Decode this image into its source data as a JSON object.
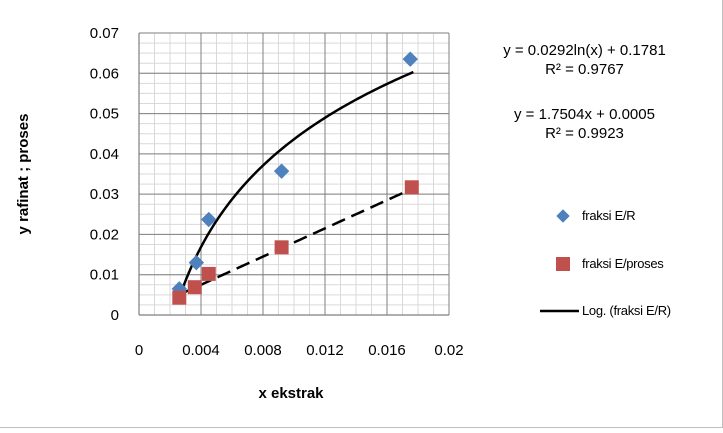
{
  "chart_data": {
    "type": "scatter",
    "xlabel": "x ekstrak",
    "ylabel": "y rafinat ; proses",
    "xlim": [
      0,
      0.02
    ],
    "ylim": [
      0,
      0.07
    ],
    "x_ticks": [
      "0",
      "0.004",
      "0.008",
      "0.012",
      "0.016",
      "0.02"
    ],
    "y_ticks": [
      "0",
      "0.01",
      "0.02",
      "0.03",
      "0.04",
      "0.05",
      "0.06",
      "0.07"
    ],
    "x_tick_values": [
      0,
      0.004,
      0.008,
      0.012,
      0.016,
      0.02
    ],
    "y_tick_values": [
      0,
      0.01,
      0.02,
      0.03,
      0.04,
      0.05,
      0.06,
      0.07
    ],
    "grid": true,
    "legend_position": "right",
    "series": [
      {
        "name": "fraksi E/R",
        "marker": "diamond",
        "color": "#4f81bd",
        "x": [
          0.0026,
          0.0037,
          0.0045,
          0.0092,
          0.0175
        ],
        "y": [
          0.0065,
          0.013,
          0.0237,
          0.0357,
          0.0635
        ]
      },
      {
        "name": "fraksi E/proses",
        "marker": "square",
        "color": "#c0504d",
        "x": [
          0.0026,
          0.0036,
          0.0045,
          0.0092,
          0.0176
        ],
        "y": [
          0.0043,
          0.0069,
          0.0102,
          0.0168,
          0.0317
        ]
      }
    ],
    "trendlines": [
      {
        "name": "Log. (fraksi E/R)",
        "type": "log",
        "a": 0.0292,
        "b": 0.1781,
        "x_range": [
          0.0027,
          0.0177
        ],
        "style": "solid",
        "color": "#000000"
      },
      {
        "type": "linear",
        "a": 1.7504,
        "b": 0.0005,
        "x_range": [
          0.0026,
          0.0177
        ],
        "style": "dashed",
        "color": "#000000"
      }
    ],
    "equations": [
      {
        "equation": "y = 0.0292ln(x) + 0.1781",
        "r2": "R² = 0.9767"
      },
      {
        "equation": "y = 1.7504x + 0.0005",
        "r2": "R² = 0.9923"
      }
    ],
    "legend": [
      {
        "label": "fraksi E/R",
        "symbol": "diamond",
        "color": "#4f81bd"
      },
      {
        "label": "fraksi E/proses",
        "symbol": "square",
        "color": "#c0504d"
      },
      {
        "label": "Log. (fraksi E/R)",
        "symbol": "line",
        "color": "#000000"
      }
    ]
  }
}
